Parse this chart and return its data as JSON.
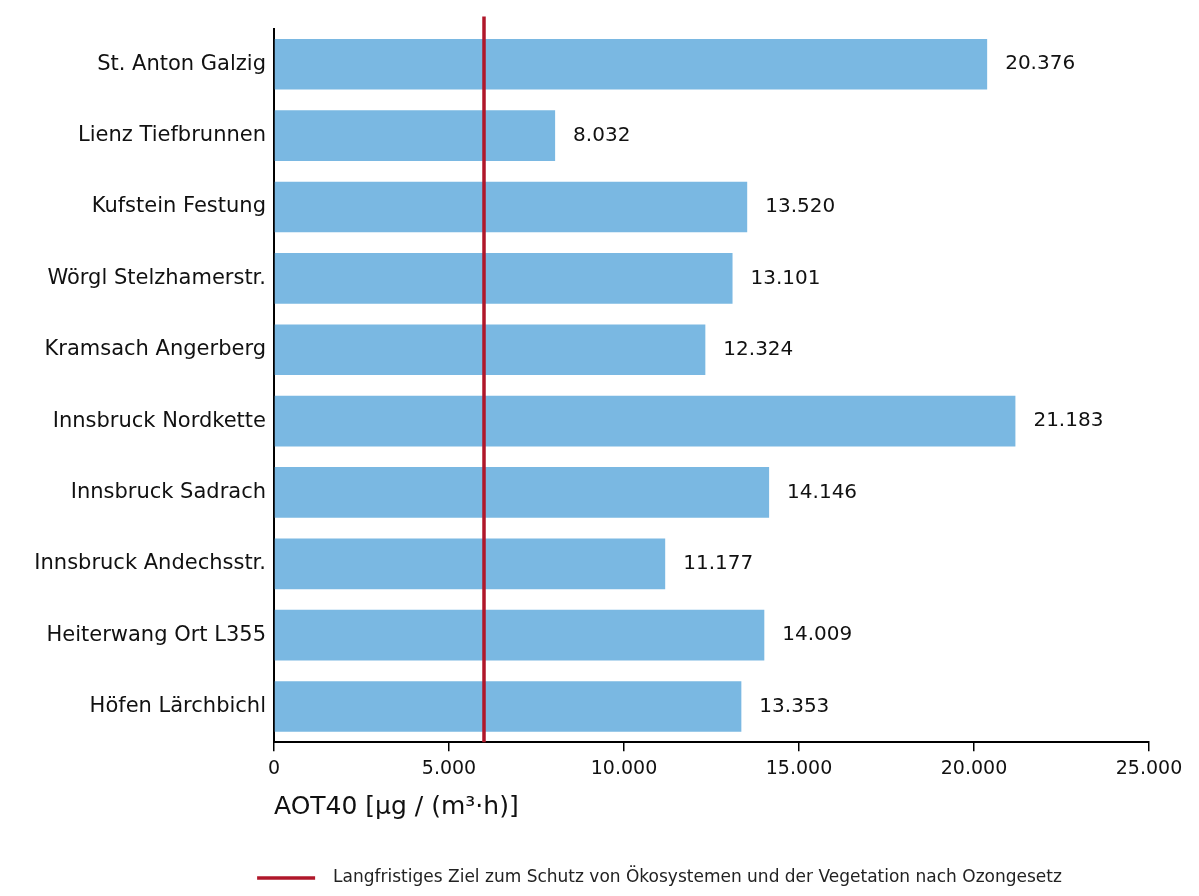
{
  "chart_data": {
    "type": "bar",
    "orientation": "horizontal",
    "categories": [
      "St. Anton Galzig",
      "Lienz Tiefbrunnen",
      "Kufstein Festung",
      "Wörgl Stelzhamerstr.",
      "Kramsach Angerberg",
      "Innsbruck Nordkette",
      "Innsbruck Sadrach",
      "Innsbruck Andechsstr.",
      "Heiterwang Ort L355",
      "Höfen Lärchbichl"
    ],
    "values": [
      20376,
      8032,
      13520,
      13101,
      12324,
      21183,
      14146,
      11177,
      14009,
      13353
    ],
    "value_labels": [
      "20.376",
      "8.032",
      "13.520",
      "13.101",
      "12.324",
      "21.183",
      "14.146",
      "11.177",
      "14.009",
      "13.353"
    ],
    "color": "#7ab8e2",
    "xlim": [
      0,
      25000
    ],
    "xticks": [
      {
        "value": 0,
        "label": "0"
      },
      {
        "value": 5000,
        "label": "5.000"
      },
      {
        "value": 10000,
        "label": "10.000"
      },
      {
        "value": 15000,
        "label": "15.000"
      },
      {
        "value": 20000,
        "label": "20.000"
      },
      {
        "value": 25000,
        "label": "25.000"
      }
    ],
    "xlabel": "AOT40 [µg / (m³·h)]",
    "ref_lines": [
      {
        "axis": "x",
        "value": 6000,
        "label": "Langfristiges Ziel zum Schutz von Ökosystemen und der Vegetation nach Ozongesetz",
        "color": "#b0172a"
      }
    ],
    "legend": "bottom",
    "grid": false
  }
}
